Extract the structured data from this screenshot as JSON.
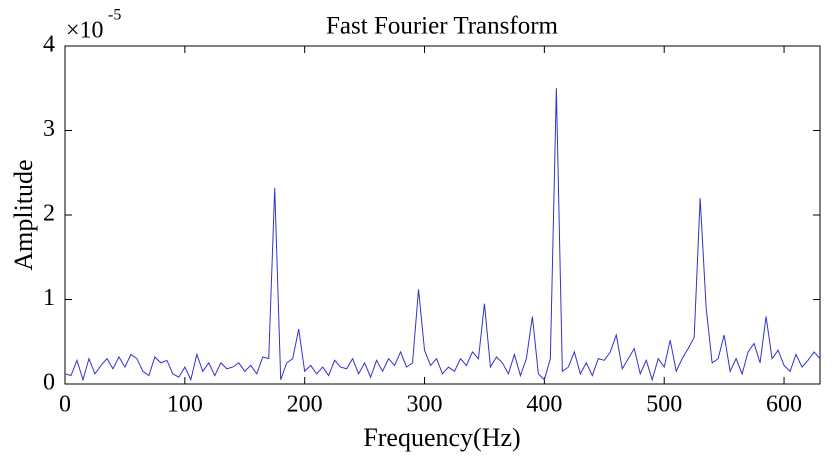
{
  "chart_data": {
    "type": "line",
    "title": "Fast Fourier Transform",
    "x_label": "Frequency(Hz)",
    "y_label": "Amplitude",
    "y_multiplier": {
      "base": "×10",
      "exponent": "-5"
    },
    "xlim": [
      0,
      630
    ],
    "ylim": [
      0,
      4
    ],
    "xticks": [
      0,
      100,
      200,
      300,
      400,
      500,
      600
    ],
    "yticks": [
      0,
      1,
      2,
      3,
      4
    ],
    "grid": false,
    "x": [
      0,
      5,
      10,
      15,
      20,
      25,
      30,
      35,
      40,
      45,
      50,
      55,
      60,
      65,
      70,
      75,
      80,
      85,
      90,
      95,
      100,
      105,
      110,
      115,
      120,
      125,
      130,
      135,
      140,
      145,
      150,
      155,
      160,
      165,
      170,
      175,
      180,
      185,
      190,
      195,
      200,
      205,
      210,
      215,
      220,
      225,
      230,
      235,
      240,
      245,
      250,
      255,
      260,
      265,
      270,
      275,
      280,
      285,
      290,
      295,
      300,
      305,
      310,
      315,
      320,
      325,
      330,
      335,
      340,
      345,
      350,
      355,
      360,
      365,
      370,
      375,
      380,
      385,
      390,
      395,
      400,
      405,
      410,
      415,
      420,
      425,
      430,
      435,
      440,
      445,
      450,
      455,
      460,
      465,
      470,
      475,
      480,
      485,
      490,
      495,
      500,
      505,
      510,
      515,
      520,
      525,
      530,
      535,
      540,
      545,
      550,
      555,
      560,
      565,
      570,
      575,
      580,
      585,
      590,
      595,
      600,
      605,
      610,
      615,
      620,
      625,
      630
    ],
    "series": [
      {
        "name": "Amplitude",
        "color": "#3333cc",
        "values": [
          0.12,
          0.1,
          0.28,
          0.05,
          0.3,
          0.12,
          0.22,
          0.3,
          0.18,
          0.32,
          0.2,
          0.35,
          0.3,
          0.15,
          0.1,
          0.32,
          0.25,
          0.28,
          0.12,
          0.08,
          0.2,
          0.05,
          0.35,
          0.15,
          0.25,
          0.1,
          0.25,
          0.18,
          0.2,
          0.25,
          0.15,
          0.22,
          0.12,
          0.32,
          0.3,
          2.32,
          0.05,
          0.25,
          0.3,
          0.65,
          0.15,
          0.22,
          0.12,
          0.2,
          0.1,
          0.28,
          0.2,
          0.18,
          0.3,
          0.12,
          0.25,
          0.08,
          0.28,
          0.15,
          0.3,
          0.22,
          0.38,
          0.2,
          0.25,
          1.12,
          0.4,
          0.22,
          0.3,
          0.12,
          0.2,
          0.15,
          0.3,
          0.22,
          0.38,
          0.3,
          0.95,
          0.2,
          0.32,
          0.25,
          0.12,
          0.35,
          0.1,
          0.3,
          0.8,
          0.12,
          0.05,
          0.3,
          3.5,
          0.15,
          0.2,
          0.38,
          0.12,
          0.25,
          0.1,
          0.3,
          0.28,
          0.38,
          0.58,
          0.18,
          0.3,
          0.42,
          0.12,
          0.28,
          0.05,
          0.3,
          0.2,
          0.52,
          0.15,
          0.3,
          0.42,
          0.55,
          2.2,
          0.9,
          0.25,
          0.3,
          0.58,
          0.15,
          0.3,
          0.12,
          0.38,
          0.48,
          0.25,
          0.8,
          0.3,
          0.4,
          0.22,
          0.15,
          0.35,
          0.2,
          0.28,
          0.38,
          0.3
        ]
      }
    ]
  }
}
